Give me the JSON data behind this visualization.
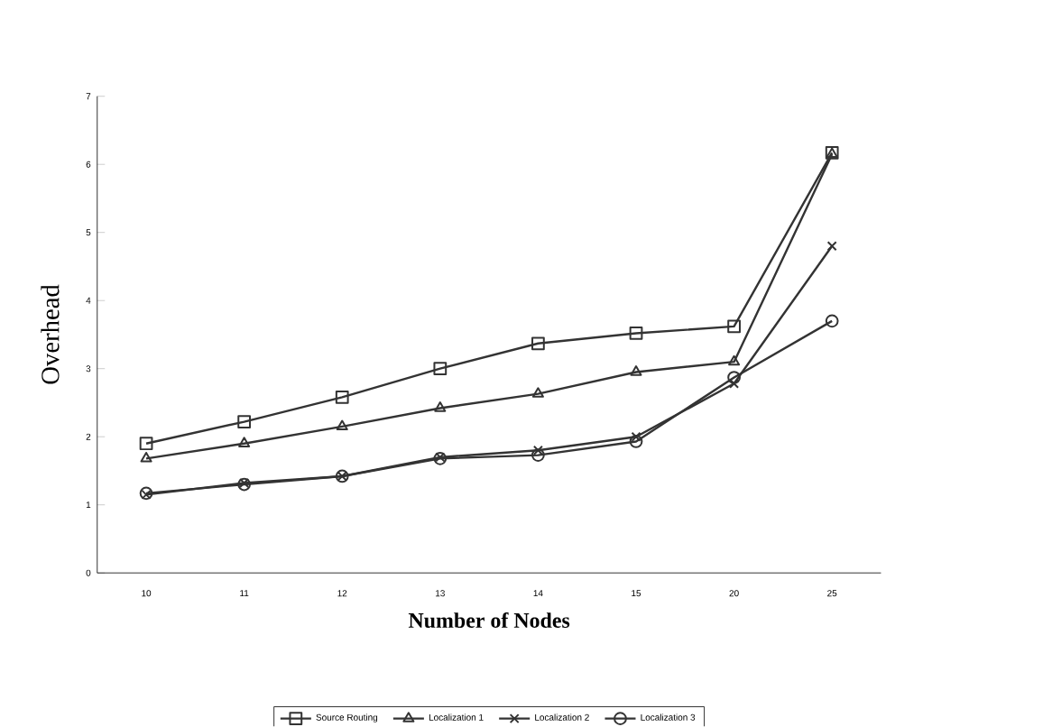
{
  "chart_data": {
    "type": "line",
    "xlabel": "Number of Nodes",
    "ylabel": "Overhead",
    "categories": [
      "10",
      "11",
      "12",
      "13",
      "14",
      "15",
      "20",
      "25"
    ],
    "ylim": [
      0,
      7
    ],
    "yticks": [
      0,
      1,
      2,
      3,
      4,
      5,
      6,
      7
    ],
    "grid": false,
    "legend": "bottom",
    "line_style": "solid",
    "series": [
      {
        "name": "Source Routing",
        "color": "#333333",
        "marker": "square",
        "values": [
          1.9,
          2.22,
          2.58,
          3.0,
          3.37,
          3.52,
          3.62,
          6.17
        ]
      },
      {
        "name": "Localization 1",
        "color": "#333333",
        "marker": "triangle",
        "values": [
          1.68,
          1.9,
          2.15,
          2.42,
          2.63,
          2.95,
          3.1,
          6.15
        ]
      },
      {
        "name": "Localization 2",
        "color": "#333333",
        "marker": "cross",
        "values": [
          1.15,
          1.32,
          1.42,
          1.7,
          1.8,
          2.0,
          2.78,
          4.8
        ]
      },
      {
        "name": "Localization 3",
        "color": "#333333",
        "marker": "circle",
        "values": [
          1.17,
          1.3,
          1.42,
          1.68,
          1.73,
          1.93,
          2.87,
          3.7
        ]
      }
    ]
  }
}
